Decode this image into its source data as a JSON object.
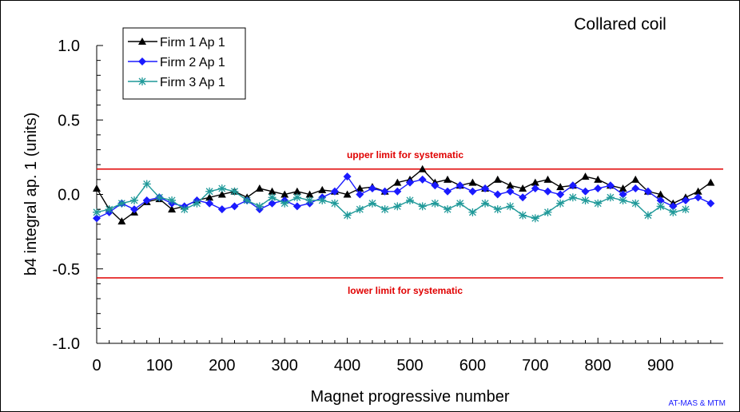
{
  "chart_data": {
    "type": "line",
    "title": "Collared coil",
    "xlabel": "Magnet progressive number",
    "ylabel": "b4 integral ap. 1 (units)",
    "xlim": [
      0,
      1000
    ],
    "ylim": [
      -1.0,
      1.0
    ],
    "x_ticks": [
      0,
      100,
      200,
      300,
      400,
      500,
      600,
      700,
      800,
      900
    ],
    "y_ticks": [
      "1.0",
      "0.5",
      "0.0",
      "-0.5",
      "-1.0"
    ],
    "y_tick_values": [
      1.0,
      0.5,
      0.0,
      -0.5,
      -1.0
    ],
    "grid": false,
    "legend_position": "top-left",
    "credit": "AT-MAS & MTM",
    "limits": [
      {
        "label": "upper limit for systematic",
        "value": 0.17,
        "color": "#e00000"
      },
      {
        "label": "lower limit for systematic",
        "value": -0.56,
        "color": "#e00000"
      }
    ],
    "series": [
      {
        "name": "Firm 1 Ap 1",
        "color": "#000000",
        "marker": "triangle",
        "x": [
          0,
          20,
          40,
          60,
          80,
          100,
          120,
          140,
          160,
          180,
          200,
          220,
          240,
          260,
          280,
          300,
          320,
          340,
          360,
          380,
          400,
          420,
          440,
          460,
          480,
          500,
          520,
          540,
          560,
          580,
          600,
          620,
          640,
          660,
          680,
          700,
          720,
          740,
          760,
          780,
          800,
          820,
          840,
          860,
          880,
          900,
          920,
          940,
          960,
          980
        ],
        "y": [
          0.04,
          -0.1,
          -0.18,
          -0.12,
          -0.05,
          -0.03,
          -0.1,
          -0.08,
          -0.04,
          -0.02,
          0.0,
          0.02,
          -0.02,
          0.04,
          0.02,
          0.0,
          0.02,
          0.0,
          0.03,
          0.02,
          0.0,
          0.04,
          0.05,
          0.02,
          0.08,
          0.1,
          0.17,
          0.08,
          0.1,
          0.06,
          0.08,
          0.04,
          0.1,
          0.06,
          0.04,
          0.08,
          0.1,
          0.05,
          0.06,
          0.12,
          0.1,
          0.06,
          0.04,
          0.1,
          0.02,
          0.0,
          -0.06,
          -0.02,
          0.02,
          0.08
        ]
      },
      {
        "name": "Firm 2 Ap 1",
        "color": "#1a1aff",
        "marker": "diamond",
        "x": [
          0,
          20,
          40,
          60,
          80,
          100,
          120,
          140,
          160,
          180,
          200,
          220,
          240,
          260,
          280,
          300,
          320,
          340,
          360,
          380,
          400,
          420,
          440,
          460,
          480,
          500,
          520,
          540,
          560,
          580,
          600,
          620,
          640,
          660,
          680,
          700,
          720,
          740,
          760,
          780,
          800,
          820,
          840,
          860,
          880,
          900,
          920,
          940,
          960,
          980
        ],
        "y": [
          -0.16,
          -0.12,
          -0.06,
          -0.1,
          -0.04,
          -0.02,
          -0.06,
          -0.08,
          -0.04,
          -0.06,
          -0.1,
          -0.08,
          -0.04,
          -0.1,
          -0.06,
          -0.04,
          -0.08,
          -0.06,
          -0.02,
          0.02,
          0.12,
          0.0,
          0.04,
          0.02,
          0.02,
          0.08,
          0.1,
          0.06,
          0.02,
          0.06,
          0.02,
          0.04,
          0.0,
          0.02,
          -0.02,
          0.04,
          0.02,
          0.0,
          0.06,
          0.02,
          0.04,
          0.06,
          0.0,
          0.04,
          0.02,
          -0.04,
          -0.08,
          -0.04,
          -0.02,
          -0.06
        ]
      },
      {
        "name": "Firm 3 Ap 1",
        "color": "#1f9999",
        "marker": "star",
        "x": [
          0,
          20,
          40,
          60,
          80,
          100,
          120,
          140,
          160,
          180,
          200,
          220,
          240,
          260,
          280,
          300,
          320,
          340,
          360,
          380,
          400,
          420,
          440,
          460,
          480,
          500,
          520,
          540,
          560,
          580,
          600,
          620,
          640,
          660,
          680,
          700,
          720,
          740,
          760,
          780,
          800,
          820,
          840,
          860,
          880,
          900,
          920,
          940
        ],
        "y": [
          -0.12,
          -0.1,
          -0.06,
          -0.04,
          0.07,
          -0.02,
          -0.04,
          -0.1,
          -0.06,
          0.02,
          0.04,
          0.02,
          -0.04,
          -0.08,
          -0.02,
          -0.06,
          -0.02,
          -0.04,
          -0.04,
          -0.06,
          -0.14,
          -0.1,
          -0.06,
          -0.1,
          -0.08,
          -0.04,
          -0.08,
          -0.06,
          -0.1,
          -0.06,
          -0.12,
          -0.06,
          -0.1,
          -0.08,
          -0.14,
          -0.16,
          -0.12,
          -0.06,
          -0.02,
          -0.04,
          -0.06,
          -0.02,
          -0.04,
          -0.06,
          -0.14,
          -0.08,
          -0.12,
          -0.1
        ]
      }
    ]
  }
}
